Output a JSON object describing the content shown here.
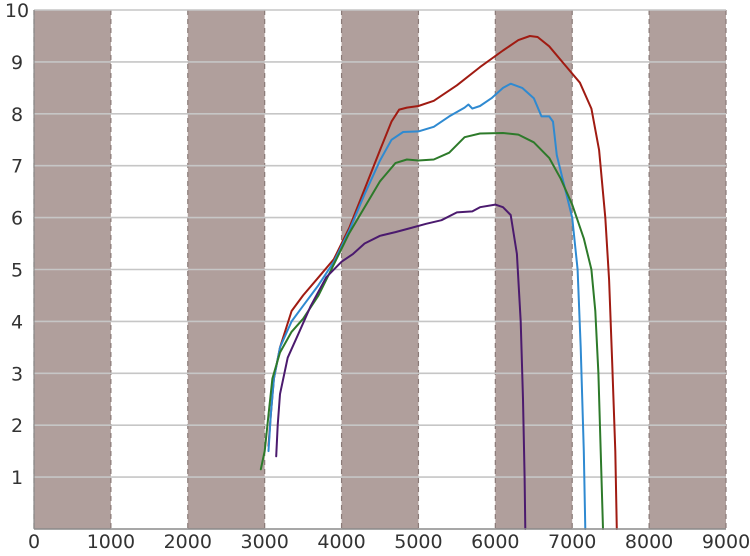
{
  "chart_data": {
    "type": "line",
    "title": "",
    "xlabel": "",
    "ylabel": "",
    "xlim": [
      0,
      9000
    ],
    "ylim": [
      0,
      10
    ],
    "x_ticks": [
      "0",
      "1000",
      "2000",
      "3000",
      "4000",
      "5000",
      "6000",
      "7000",
      "8000",
      "9000"
    ],
    "y_ticks": [
      "1",
      "2",
      "3",
      "4",
      "5",
      "6",
      "7",
      "8",
      "9",
      "10"
    ],
    "grid": true,
    "background_bands": [
      [
        0,
        1000
      ],
      [
        2000,
        3000
      ],
      [
        4000,
        5000
      ],
      [
        6000,
        7000
      ],
      [
        8000,
        9000
      ]
    ],
    "series": [
      {
        "color": "#a01b12",
        "points": [
          [
            3050,
            1.6
          ],
          [
            3080,
            2.2
          ],
          [
            3120,
            2.9
          ],
          [
            3200,
            3.5
          ],
          [
            3350,
            4.2
          ],
          [
            3500,
            4.5
          ],
          [
            3700,
            4.85
          ],
          [
            3900,
            5.2
          ],
          [
            4100,
            5.8
          ],
          [
            4300,
            6.55
          ],
          [
            4500,
            7.3
          ],
          [
            4650,
            7.85
          ],
          [
            4750,
            8.08
          ],
          [
            4850,
            8.12
          ],
          [
            5000,
            8.15
          ],
          [
            5200,
            8.25
          ],
          [
            5500,
            8.55
          ],
          [
            5800,
            8.9
          ],
          [
            6100,
            9.22
          ],
          [
            6300,
            9.42
          ],
          [
            6450,
            9.5
          ],
          [
            6550,
            9.48
          ],
          [
            6700,
            9.3
          ],
          [
            6900,
            8.95
          ],
          [
            7100,
            8.6
          ],
          [
            7250,
            8.1
          ],
          [
            7350,
            7.3
          ],
          [
            7430,
            6.0
          ],
          [
            7480,
            4.8
          ],
          [
            7520,
            3.2
          ],
          [
            7560,
            1.5
          ],
          [
            7580,
            0.0
          ]
        ]
      },
      {
        "color": "#2f8ad1",
        "points": [
          [
            3050,
            1.5
          ],
          [
            3080,
            2.2
          ],
          [
            3120,
            2.9
          ],
          [
            3200,
            3.5
          ],
          [
            3350,
            4.0
          ],
          [
            3500,
            4.3
          ],
          [
            3700,
            4.7
          ],
          [
            3900,
            5.15
          ],
          [
            4100,
            5.75
          ],
          [
            4300,
            6.45
          ],
          [
            4500,
            7.1
          ],
          [
            4650,
            7.5
          ],
          [
            4800,
            7.65
          ],
          [
            5000,
            7.66
          ],
          [
            5200,
            7.75
          ],
          [
            5400,
            7.95
          ],
          [
            5600,
            8.12
          ],
          [
            5650,
            8.18
          ],
          [
            5700,
            8.1
          ],
          [
            5800,
            8.15
          ],
          [
            5950,
            8.3
          ],
          [
            6100,
            8.5
          ],
          [
            6200,
            8.58
          ],
          [
            6350,
            8.5
          ],
          [
            6500,
            8.3
          ],
          [
            6600,
            7.95
          ],
          [
            6700,
            7.95
          ],
          [
            6750,
            7.85
          ],
          [
            6800,
            7.2
          ],
          [
            6900,
            6.6
          ],
          [
            7000,
            6.0
          ],
          [
            7070,
            5.0
          ],
          [
            7110,
            3.5
          ],
          [
            7150,
            1.5
          ],
          [
            7170,
            0.0
          ]
        ]
      },
      {
        "color": "#2d7a2a",
        "points": [
          [
            2950,
            1.15
          ],
          [
            3000,
            1.5
          ],
          [
            3050,
            2.2
          ],
          [
            3100,
            2.9
          ],
          [
            3200,
            3.4
          ],
          [
            3350,
            3.8
          ],
          [
            3500,
            4.05
          ],
          [
            3700,
            4.5
          ],
          [
            3900,
            5.1
          ],
          [
            4100,
            5.7
          ],
          [
            4300,
            6.2
          ],
          [
            4500,
            6.7
          ],
          [
            4700,
            7.05
          ],
          [
            4850,
            7.12
          ],
          [
            5000,
            7.1
          ],
          [
            5200,
            7.12
          ],
          [
            5400,
            7.25
          ],
          [
            5500,
            7.4
          ],
          [
            5600,
            7.55
          ],
          [
            5800,
            7.62
          ],
          [
            6100,
            7.63
          ],
          [
            6300,
            7.6
          ],
          [
            6500,
            7.45
          ],
          [
            6700,
            7.15
          ],
          [
            6850,
            6.75
          ],
          [
            7000,
            6.25
          ],
          [
            7150,
            5.6
          ],
          [
            7250,
            5.0
          ],
          [
            7300,
            4.2
          ],
          [
            7340,
            3.0
          ],
          [
            7370,
            1.5
          ],
          [
            7400,
            0.0
          ]
        ]
      },
      {
        "color": "#4b1a6e",
        "points": [
          [
            3150,
            1.4
          ],
          [
            3170,
            2.0
          ],
          [
            3200,
            2.6
          ],
          [
            3300,
            3.3
          ],
          [
            3450,
            3.8
          ],
          [
            3600,
            4.3
          ],
          [
            3800,
            4.85
          ],
          [
            4000,
            5.15
          ],
          [
            4150,
            5.3
          ],
          [
            4300,
            5.5
          ],
          [
            4500,
            5.65
          ],
          [
            4700,
            5.72
          ],
          [
            4900,
            5.8
          ],
          [
            5100,
            5.88
          ],
          [
            5300,
            5.95
          ],
          [
            5500,
            6.1
          ],
          [
            5700,
            6.12
          ],
          [
            5800,
            6.2
          ],
          [
            6000,
            6.25
          ],
          [
            6100,
            6.2
          ],
          [
            6200,
            6.05
          ],
          [
            6280,
            5.3
          ],
          [
            6330,
            4.0
          ],
          [
            6360,
            2.5
          ],
          [
            6380,
            1.0
          ],
          [
            6390,
            0.0
          ]
        ]
      }
    ]
  }
}
